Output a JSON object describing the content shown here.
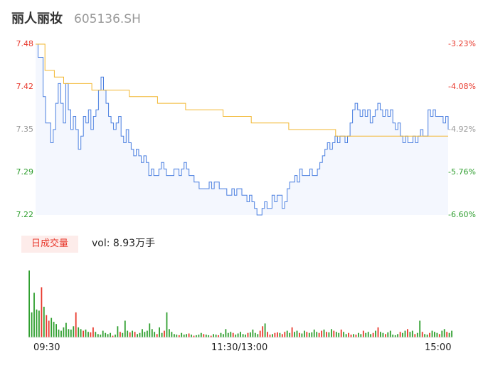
{
  "stock": {
    "name": "丽人丽妆",
    "code": "605136.SH"
  },
  "price_axis": [
    "7.48",
    "7.42",
    "7.35",
    "7.29",
    "7.22"
  ],
  "pct_axis": [
    "-3.23%",
    "-4.08%",
    "-4.92%",
    "-5.76%",
    "-6.60%"
  ],
  "colors": {
    "up": "#e8382c",
    "down": "#2e9e2e",
    "price_line": "#4a7fe0",
    "avg_line": "#f2b731",
    "neutral": "#999999"
  },
  "volume": {
    "tab_label": "日成交量",
    "text": "vol: 8.93万手"
  },
  "time_axis": [
    "09:30",
    "11:30/13:00",
    "15:00"
  ],
  "chart_data": {
    "type": "line",
    "ylim": [
      7.22,
      7.48
    ],
    "series": [
      {
        "values": [
          7.48,
          7.46,
          7.46,
          7.4,
          7.36,
          7.36,
          7.33,
          7.35,
          7.39,
          7.42,
          7.39,
          7.36,
          7.42,
          7.38,
          7.35,
          7.37,
          7.35,
          7.32,
          7.34,
          7.37,
          7.36,
          7.38,
          7.35,
          7.37,
          7.38,
          7.41,
          7.43,
          7.41,
          7.39,
          7.37,
          7.36,
          7.35,
          7.36,
          7.37,
          7.34,
          7.33,
          7.35,
          7.33,
          7.32,
          7.31,
          7.32,
          7.31,
          7.3,
          7.31,
          7.3,
          7.28,
          7.29,
          7.28,
          7.28,
          7.29,
          7.3,
          7.29,
          7.28,
          7.28,
          7.28,
          7.29,
          7.29,
          7.28,
          7.29,
          7.3,
          7.29,
          7.28,
          7.28,
          7.27,
          7.27,
          7.26,
          7.26,
          7.26,
          7.26,
          7.27,
          7.26,
          7.27,
          7.27,
          7.26,
          7.26,
          7.26,
          7.25,
          7.25,
          7.26,
          7.25,
          7.26,
          7.26,
          7.25,
          7.25,
          7.24,
          7.25,
          7.24,
          7.23,
          7.22,
          7.22,
          7.23,
          7.24,
          7.23,
          7.23,
          7.25,
          7.24,
          7.25,
          7.25,
          7.23,
          7.24,
          7.26,
          7.27,
          7.27,
          7.28,
          7.27,
          7.29,
          7.28,
          7.28,
          7.28,
          7.29,
          7.28,
          7.28,
          7.29,
          7.3,
          7.31,
          7.32,
          7.33,
          7.32,
          7.33,
          7.34,
          7.33,
          7.34,
          7.34,
          7.33,
          7.34,
          7.36,
          7.38,
          7.39,
          7.38,
          7.37,
          7.38,
          7.37,
          7.38,
          7.36,
          7.37,
          7.38,
          7.39,
          7.38,
          7.37,
          7.38,
          7.37,
          7.38,
          7.36,
          7.35,
          7.36,
          7.34,
          7.33,
          7.34,
          7.33,
          7.33,
          7.34,
          7.33,
          7.34,
          7.35,
          7.34,
          7.34,
          7.38,
          7.37,
          7.38,
          7.37,
          7.37,
          7.37,
          7.36,
          7.37,
          7.35
        ]
      },
      {
        "values": [
          7.48,
          7.44,
          7.43,
          7.42,
          7.42,
          7.42,
          7.41,
          7.41,
          7.41,
          7.41,
          7.4,
          7.4,
          7.4,
          7.39,
          7.39,
          7.39,
          7.38,
          7.38,
          7.38,
          7.38,
          7.37,
          7.37,
          7.37,
          7.36,
          7.36,
          7.36,
          7.36,
          7.35,
          7.35,
          7.35,
          7.35,
          7.35,
          7.34,
          7.34,
          7.34,
          7.34,
          7.34,
          7.34,
          7.34,
          7.34,
          7.34,
          7.34,
          7.34,
          7.34,
          7.34
        ]
      }
    ],
    "volume_series": [
      {
        "values": [
          120,
          45,
          80,
          50,
          48,
          90,
          55,
          40,
          30,
          35,
          28,
          24,
          14,
          12,
          18,
          26,
          15,
          14,
          20,
          45,
          18,
          15,
          12,
          14,
          10,
          9,
          18,
          10,
          6,
          5,
          12,
          8,
          6,
          8,
          3,
          5,
          20,
          10,
          8,
          30,
          12,
          9,
          12,
          10,
          6,
          8,
          15,
          10,
          12,
          25,
          15,
          10,
          6,
          18,
          8,
          12,
          45,
          15,
          10,
          6,
          5,
          4,
          8,
          5,
          6,
          7,
          5,
          3,
          4,
          5,
          8,
          6,
          5,
          4,
          3,
          6,
          5,
          4,
          8,
          6,
          15,
          8,
          10,
          8,
          5,
          7,
          10,
          6,
          5,
          8,
          9,
          14,
          8,
          6,
          12,
          20,
          25,
          10,
          5,
          6,
          8,
          9,
          8,
          6,
          10,
          12,
          8,
          18,
          10,
          12,
          8,
          7,
          12,
          10,
          8,
          9,
          14,
          10,
          8,
          12,
          14,
          10,
          9,
          15,
          12,
          10,
          8,
          14,
          10,
          6,
          8,
          5,
          6,
          5,
          8,
          6,
          12,
          8,
          10,
          6,
          8,
          12,
          18,
          10,
          8,
          6,
          9,
          12,
          5,
          4,
          6,
          10,
          8,
          12,
          15,
          10,
          12,
          6,
          8,
          30,
          10,
          6,
          5,
          8,
          12,
          10,
          8,
          6,
          12,
          15,
          10,
          8,
          12
        ]
      }
    ]
  }
}
